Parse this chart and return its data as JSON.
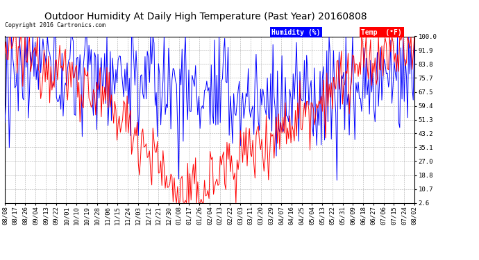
{
  "title": "Outdoor Humidity At Daily High Temperature (Past Year) 20160808",
  "copyright": "Copyright 2016 Cartronics.com",
  "yticks": [
    2.6,
    10.7,
    18.8,
    27.0,
    35.1,
    43.2,
    51.3,
    59.4,
    67.5,
    75.7,
    83.8,
    91.9,
    100.0
  ],
  "xtick_labels": [
    "08/08",
    "08/17",
    "08/26",
    "09/04",
    "09/13",
    "09/22",
    "10/01",
    "10/10",
    "10/19",
    "10/28",
    "11/06",
    "11/15",
    "11/24",
    "12/03",
    "12/12",
    "12/21",
    "12/30",
    "01/08",
    "01/17",
    "01/26",
    "02/04",
    "02/13",
    "02/22",
    "03/03",
    "03/11",
    "03/20",
    "03/29",
    "04/07",
    "04/16",
    "04/25",
    "05/04",
    "05/13",
    "05/22",
    "05/31",
    "06/09",
    "06/18",
    "06/27",
    "07/06",
    "07/15",
    "07/24",
    "08/02"
  ],
  "num_points": 366,
  "humidity_color": "#0000ff",
  "temp_color": "#ff0000",
  "background_color": "#ffffff",
  "grid_color": "#888888",
  "title_fontsize": 10,
  "copyright_fontsize": 6,
  "tick_fontsize": 6.5,
  "ylim": [
    2.6,
    100.0
  ],
  "linewidth": 0.7,
  "legend_humidity_label": "Humidity (%)",
  "legend_temp_label": "Temp  (°F)",
  "legend_humidity_bg": "#0000ff",
  "legend_temp_bg": "#ff0000",
  "legend_text_color": "#ffffff",
  "legend_fontsize": 7
}
